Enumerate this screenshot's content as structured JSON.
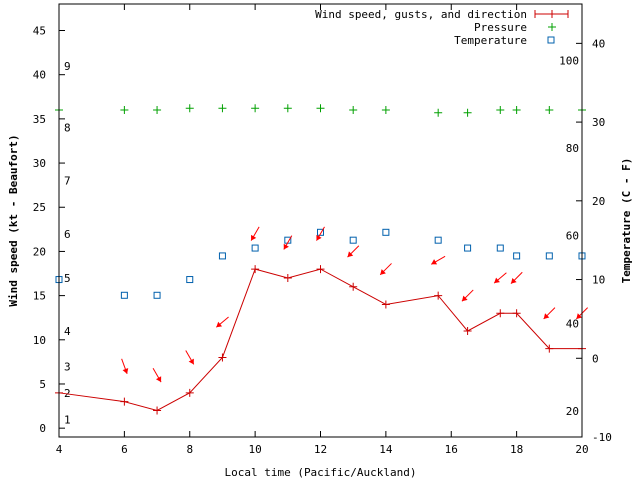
{
  "chart_data": {
    "type": "line",
    "xlabel": "Local time (Pacific/Auckland)",
    "ylabel_left": "Wind speed (kt - Beaufort)",
    "ylabel_right": "Temperature (C - F)",
    "x_range": [
      4,
      20
    ],
    "y_left_range": [
      -1,
      48
    ],
    "y_right_range": [
      -10,
      45
    ],
    "x_ticks": [
      4,
      6,
      8,
      10,
      12,
      14,
      16,
      18,
      20
    ],
    "y_left_ticks": [
      0,
      5,
      10,
      15,
      20,
      25,
      30,
      35,
      40,
      45
    ],
    "y_right_ticks": [
      -10,
      0,
      10,
      20,
      30,
      40
    ],
    "beaufort_labels": [
      {
        "label": "1",
        "y": 1
      },
      {
        "label": "2",
        "y": 4
      },
      {
        "label": "3",
        "y": 7
      },
      {
        "label": "4",
        "y": 11
      },
      {
        "label": "5",
        "y": 17
      },
      {
        "label": "6",
        "y": 22
      },
      {
        "label": "7",
        "y": 28
      },
      {
        "label": "8",
        "y": 34
      },
      {
        "label": "9",
        "y": 41
      }
    ],
    "fahrenheit_labels": [
      {
        "label": "20",
        "temp": -6.7
      },
      {
        "label": "40",
        "temp": 4.4
      },
      {
        "label": "60",
        "temp": 15.6
      },
      {
        "label": "80",
        "temp": 26.7
      },
      {
        "label": "100",
        "temp": 37.8
      }
    ],
    "legend": [
      "Wind speed, gusts, and direction",
      "Pressure",
      "Temperature"
    ],
    "colors": {
      "wind": "#cc0000",
      "pressure": "#00a000",
      "temperature": "#0060ad",
      "arrow": "#ff0000"
    },
    "wind": {
      "x": [
        4,
        6,
        7,
        8,
        9,
        10,
        11,
        12,
        13,
        14,
        15.6,
        16.5,
        17.5,
        18,
        19,
        20
      ],
      "y": [
        4,
        3,
        2,
        4,
        8,
        18,
        17,
        18,
        16,
        14,
        15,
        11,
        13,
        13,
        9,
        9
      ]
    },
    "pressure": {
      "x": [
        4,
        6,
        7,
        8,
        9,
        10,
        11,
        12,
        13,
        14,
        15.6,
        16.5,
        17.5,
        18,
        19,
        20
      ],
      "y": [
        36,
        36,
        36,
        36.2,
        36.2,
        36.2,
        36.2,
        36.2,
        36,
        36,
        35.7,
        35.7,
        36,
        36,
        36,
        36
      ]
    },
    "temperature": {
      "x": [
        4,
        6,
        7,
        8,
        9,
        10,
        11,
        12,
        13,
        14,
        15.6,
        16.5,
        17.5,
        18,
        19,
        20
      ],
      "y": [
        10,
        8,
        8,
        10,
        13,
        14,
        15,
        16,
        15,
        16,
        15,
        14,
        14,
        13,
        13,
        13
      ]
    },
    "wind_arrows": [
      {
        "x": 6,
        "y": 7,
        "dir": 110
      },
      {
        "x": 7,
        "y": 6,
        "dir": 120
      },
      {
        "x": 8,
        "y": 8,
        "dir": 120
      },
      {
        "x": 9,
        "y": 12,
        "dir": 40
      },
      {
        "x": 10,
        "y": 22,
        "dir": 60
      },
      {
        "x": 11,
        "y": 21,
        "dir": 60
      },
      {
        "x": 12,
        "y": 22,
        "dir": 60
      },
      {
        "x": 13,
        "y": 20,
        "dir": 45
      },
      {
        "x": 14,
        "y": 18,
        "dir": 45
      },
      {
        "x": 15.6,
        "y": 19,
        "dir": 30
      },
      {
        "x": 16.5,
        "y": 15,
        "dir": 45
      },
      {
        "x": 17.5,
        "y": 17,
        "dir": 40
      },
      {
        "x": 18,
        "y": 17,
        "dir": 45
      },
      {
        "x": 19,
        "y": 13,
        "dir": 45
      },
      {
        "x": 20,
        "y": 13,
        "dir": 45
      }
    ]
  }
}
